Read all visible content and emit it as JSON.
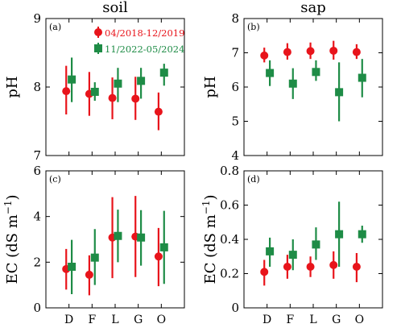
{
  "figure": {
    "x_categories": [
      "D",
      "F",
      "L",
      "G",
      "O"
    ],
    "legend": [
      {
        "label": "04/2018-12/2019",
        "color": "#e8141b",
        "marker": "circle"
      },
      {
        "label": "11/2022-05/2024",
        "color": "#1e8c46",
        "marker": "square"
      }
    ]
  },
  "chart_data": [
    {
      "type": "scatter",
      "panel_tag": "(a)",
      "title": "soil",
      "ylabel": "pH",
      "ylim": [
        7,
        9
      ],
      "yticks": [
        "7",
        "8",
        "9"
      ],
      "categories": [
        "D",
        "F",
        "L",
        "G",
        "O"
      ],
      "show_xtick_labels": false,
      "legend_inside": true,
      "series": [
        {
          "name": "04/2018-12/2019",
          "color": "#e8141b",
          "marker": "circle",
          "offset": -0.12,
          "values": [
            7.94,
            7.9,
            7.84,
            7.83,
            7.64
          ],
          "err_low": [
            7.6,
            7.58,
            7.53,
            7.52,
            7.37
          ],
          "err_high": [
            8.31,
            8.22,
            8.14,
            8.15,
            7.92
          ]
        },
        {
          "name": "11/2022-05/2024",
          "color": "#1e8c46",
          "marker": "square",
          "offset": 0.12,
          "values": [
            8.11,
            7.93,
            8.05,
            8.09,
            8.21
          ],
          "err_low": [
            7.78,
            7.8,
            7.78,
            7.83,
            8.02
          ],
          "err_high": [
            8.43,
            8.07,
            8.28,
            8.28,
            8.34
          ]
        }
      ]
    },
    {
      "type": "scatter",
      "panel_tag": "(b)",
      "title": "sap",
      "ylabel": "pH",
      "ylim": [
        4,
        8
      ],
      "yticks": [
        "4",
        "5",
        "6",
        "7",
        "8"
      ],
      "categories": [
        "D",
        "F",
        "L",
        "G",
        "O"
      ],
      "show_xtick_labels": false,
      "legend_inside": false,
      "series": [
        {
          "name": "04/2018-12/2019",
          "color": "#e8141b",
          "marker": "circle",
          "offset": -0.12,
          "values": [
            6.92,
            7.02,
            7.05,
            7.06,
            7.02
          ],
          "err_low": [
            6.72,
            6.8,
            6.82,
            6.8,
            6.82
          ],
          "err_high": [
            7.15,
            7.28,
            7.3,
            7.35,
            7.25
          ]
        },
        {
          "name": "11/2022-05/2024",
          "color": "#1e8c46",
          "marker": "square",
          "offset": 0.12,
          "values": [
            6.41,
            6.1,
            6.44,
            5.85,
            6.27
          ],
          "err_low": [
            6.03,
            5.65,
            6.18,
            5.0,
            5.7
          ],
          "err_high": [
            6.78,
            6.55,
            6.78,
            6.72,
            6.82
          ]
        }
      ]
    },
    {
      "type": "scatter",
      "panel_tag": "(c)",
      "title": "",
      "ylabel": "EC (dS m",
      "ylabel_sup": "−1",
      "ylabel_close": ")",
      "ylim": [
        0,
        6
      ],
      "yticks": [
        "0",
        "2",
        "4",
        "6"
      ],
      "categories": [
        "D",
        "F",
        "L",
        "G",
        "O"
      ],
      "show_xtick_labels": true,
      "legend_inside": false,
      "series": [
        {
          "name": "04/2018-12/2019",
          "color": "#e8141b",
          "marker": "circle",
          "offset": -0.12,
          "values": [
            1.7,
            1.45,
            3.08,
            3.12,
            2.25
          ],
          "err_low": [
            0.8,
            0.55,
            1.3,
            1.35,
            0.95
          ],
          "err_high": [
            2.58,
            2.3,
            4.85,
            4.9,
            3.5
          ]
        },
        {
          "name": "11/2022-05/2024",
          "color": "#1e8c46",
          "marker": "square",
          "offset": 0.12,
          "values": [
            1.8,
            2.2,
            3.15,
            3.08,
            2.65
          ],
          "err_low": [
            0.6,
            1.0,
            2.0,
            1.85,
            1.05
          ],
          "err_high": [
            2.98,
            3.45,
            4.3,
            4.28,
            4.25
          ]
        }
      ]
    },
    {
      "type": "scatter",
      "panel_tag": "(d)",
      "title": "",
      "ylabel": "EC (dS m",
      "ylabel_sup": "−1",
      "ylabel_close": ")",
      "ylim": [
        0,
        0.8
      ],
      "yticks": [
        "0",
        "0.2",
        "0.4",
        "0.6",
        "0.8"
      ],
      "categories": [
        "D",
        "F",
        "L",
        "G",
        "O"
      ],
      "show_xtick_labels": true,
      "legend_inside": false,
      "series": [
        {
          "name": "04/2018-12/2019",
          "color": "#e8141b",
          "marker": "circle",
          "offset": -0.12,
          "values": [
            0.21,
            0.24,
            0.24,
            0.25,
            0.24
          ],
          "err_low": [
            0.13,
            0.17,
            0.18,
            0.17,
            0.15
          ],
          "err_high": [
            0.28,
            0.31,
            0.3,
            0.33,
            0.32
          ]
        },
        {
          "name": "11/2022-05/2024",
          "color": "#1e8c46",
          "marker": "square",
          "offset": 0.12,
          "values": [
            0.33,
            0.31,
            0.37,
            0.43,
            0.43
          ],
          "err_low": [
            0.24,
            0.22,
            0.28,
            0.24,
            0.38
          ],
          "err_high": [
            0.41,
            0.4,
            0.47,
            0.62,
            0.48
          ]
        }
      ]
    }
  ]
}
